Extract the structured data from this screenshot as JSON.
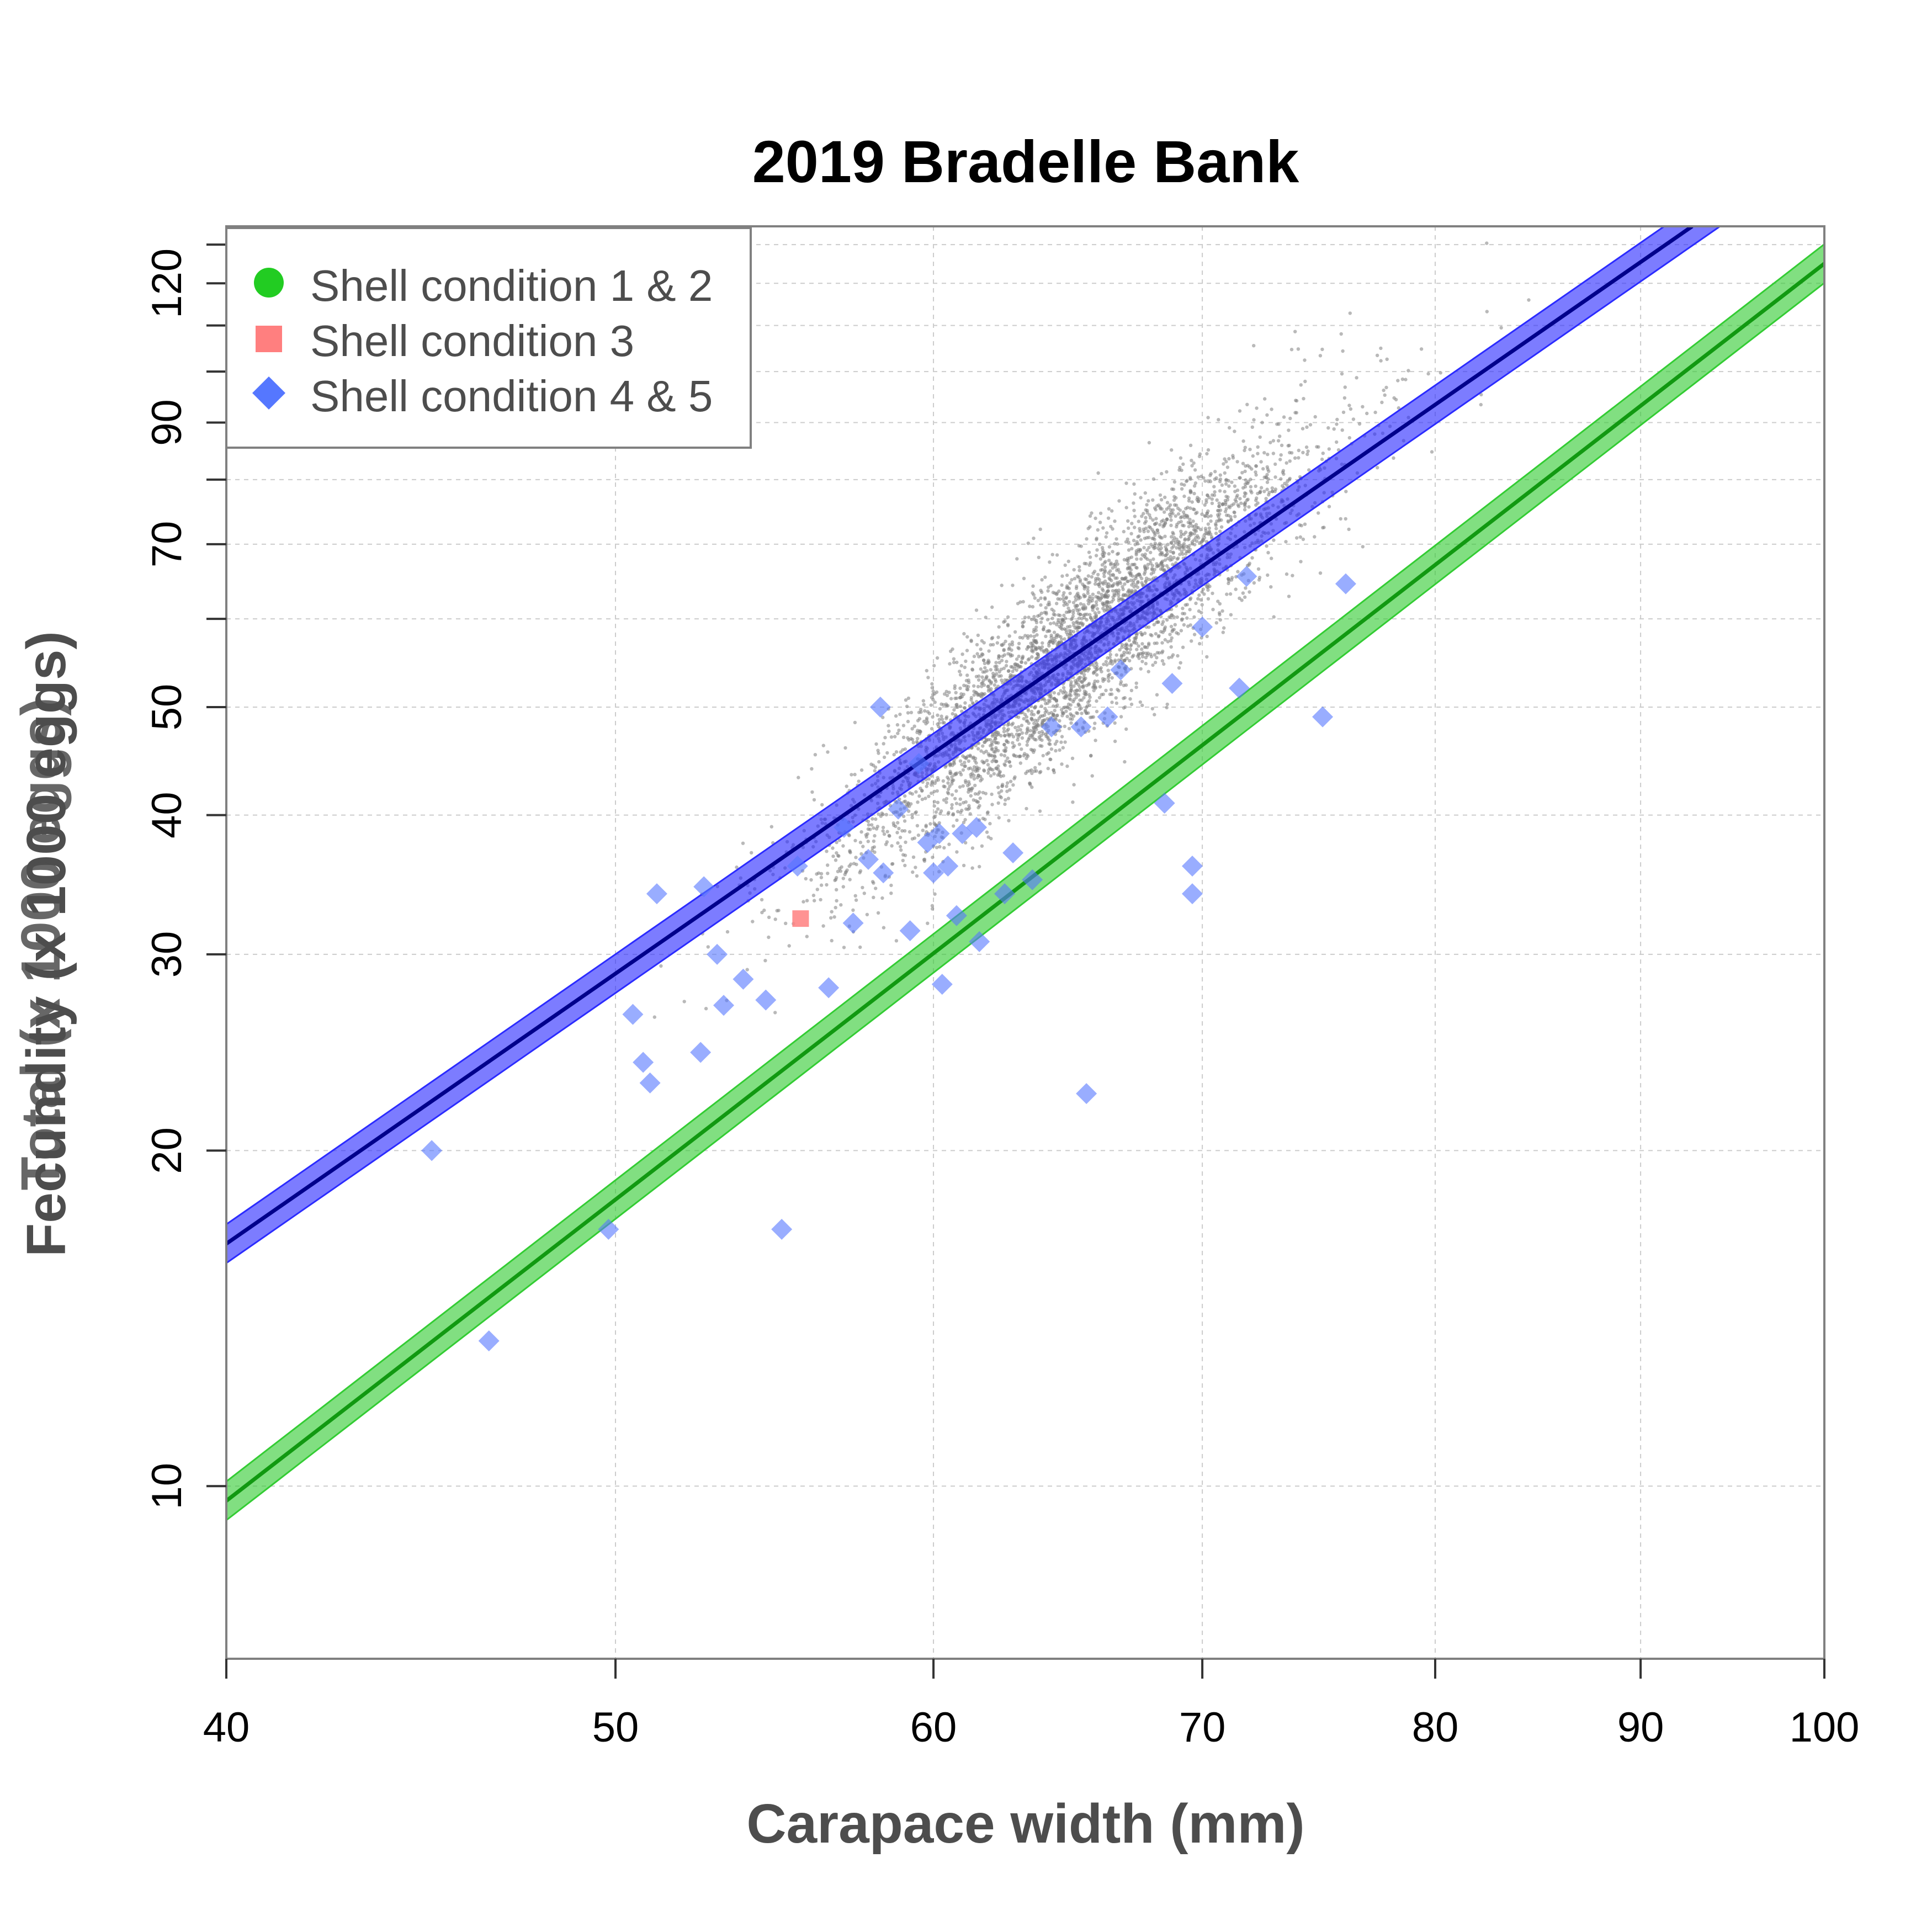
{
  "chart_data": {
    "type": "scatter",
    "title": "2019 Bradelle Bank",
    "xlabel": "Carapace width (mm)",
    "ylabel": "Fecundity (x 1000 eggs)",
    "ylabel_overlay": "Total (x 1000 eggs)",
    "x_scale": "log",
    "y_scale": "log",
    "xlim": [
      40,
      100
    ],
    "ylim": [
      7.0,
      135
    ],
    "x_ticks": [
      40,
      50,
      60,
      70,
      80,
      90,
      100
    ],
    "x_tick_labels": [
      "40",
      "50",
      "60",
      "70",
      "80",
      "90",
      "100"
    ],
    "y_ticks": [
      10,
      20,
      30,
      40,
      50,
      70,
      90,
      120
    ],
    "y_tick_labels": [
      "10",
      "20",
      "30",
      "40",
      "50",
      "70",
      "90",
      "120"
    ],
    "y_minor_ticks": [
      60,
      80,
      100,
      110,
      130
    ],
    "grid": true,
    "legend": {
      "position": "top-left",
      "entries": [
        {
          "label": "Shell condition 1 & 2",
          "marker": "circle",
          "color": "#22cc22"
        },
        {
          "label": "Shell condition 3",
          "marker": "square",
          "color": "#ff7f7f"
        },
        {
          "label": "Shell condition 4 & 5",
          "marker": "diamond",
          "color": "#5577ff"
        }
      ]
    },
    "regression_lines": [
      {
        "group": "Shell condition 4 & 5",
        "line_color": "#00008b",
        "band_color": "#2b2bff",
        "from": [
          40,
          16.5
        ],
        "to": [
          92.7,
          135
        ],
        "band_halfwidth_log": 0.04
      },
      {
        "group": "Shell condition 1 & 2",
        "line_color": "#119911",
        "band_color": "#33cc33",
        "from": [
          40,
          9.7
        ],
        "to": [
          100,
          125
        ],
        "band_halfwidth_log": 0.04
      }
    ],
    "background_cloud": {
      "color": "#7f7f7f",
      "n_points": 4200,
      "center_width_mm": 65,
      "slope_log": 2.95,
      "intercept_at_40mm": 13.4,
      "x_spread_log": 0.07,
      "y_spread_log": 0.095
    },
    "series": [
      {
        "name": "Shell condition 3",
        "marker": "square",
        "color": "#ff7f7f",
        "points": [
          [
            55.6,
            32.3
          ]
        ]
      },
      {
        "name": "Shell condition 4 & 5",
        "marker": "diamond",
        "color": "#5577ff",
        "points": [
          [
            45.0,
            20.0
          ],
          [
            46.5,
            13.5
          ],
          [
            49.8,
            17.0
          ],
          [
            50.5,
            26.5
          ],
          [
            50.8,
            24.0
          ],
          [
            51.0,
            23.0
          ],
          [
            51.2,
            34.0
          ],
          [
            52.5,
            24.5
          ],
          [
            52.6,
            34.5
          ],
          [
            53.0,
            30.0
          ],
          [
            53.2,
            27.0
          ],
          [
            53.8,
            28.5
          ],
          [
            54.5,
            27.3
          ],
          [
            55.0,
            17.0
          ],
          [
            55.5,
            36.0
          ],
          [
            56.5,
            28.0
          ],
          [
            57.3,
            32.0
          ],
          [
            57.8,
            36.5
          ],
          [
            58.2,
            50.0
          ],
          [
            58.3,
            35.5
          ],
          [
            58.8,
            40.5
          ],
          [
            59.2,
            31.5
          ],
          [
            59.8,
            37.8
          ],
          [
            60.0,
            35.5
          ],
          [
            60.2,
            38.5
          ],
          [
            60.3,
            28.2
          ],
          [
            60.5,
            36.0
          ],
          [
            61.0,
            38.5
          ],
          [
            61.5,
            39.0
          ],
          [
            61.6,
            30.8
          ],
          [
            62.5,
            34.0
          ],
          [
            63.5,
            35.0
          ],
          [
            64.2,
            48.0
          ],
          [
            65.3,
            48.0
          ],
          [
            65.5,
            22.5
          ],
          [
            66.3,
            49.0
          ],
          [
            66.8,
            54.0
          ],
          [
            68.5,
            41.0
          ],
          [
            68.8,
            52.5
          ],
          [
            69.6,
            36.0
          ],
          [
            69.6,
            34.0
          ],
          [
            70.0,
            59.0
          ],
          [
            71.5,
            52.0
          ],
          [
            71.8,
            65.5
          ],
          [
            75.0,
            49.0
          ],
          [
            76.0,
            64.5
          ],
          [
            60.8,
            32.5
          ],
          [
            62.8,
            37.0
          ],
          [
            57.0,
            39.0
          ],
          [
            59.5,
            44.5
          ]
        ]
      }
    ]
  }
}
